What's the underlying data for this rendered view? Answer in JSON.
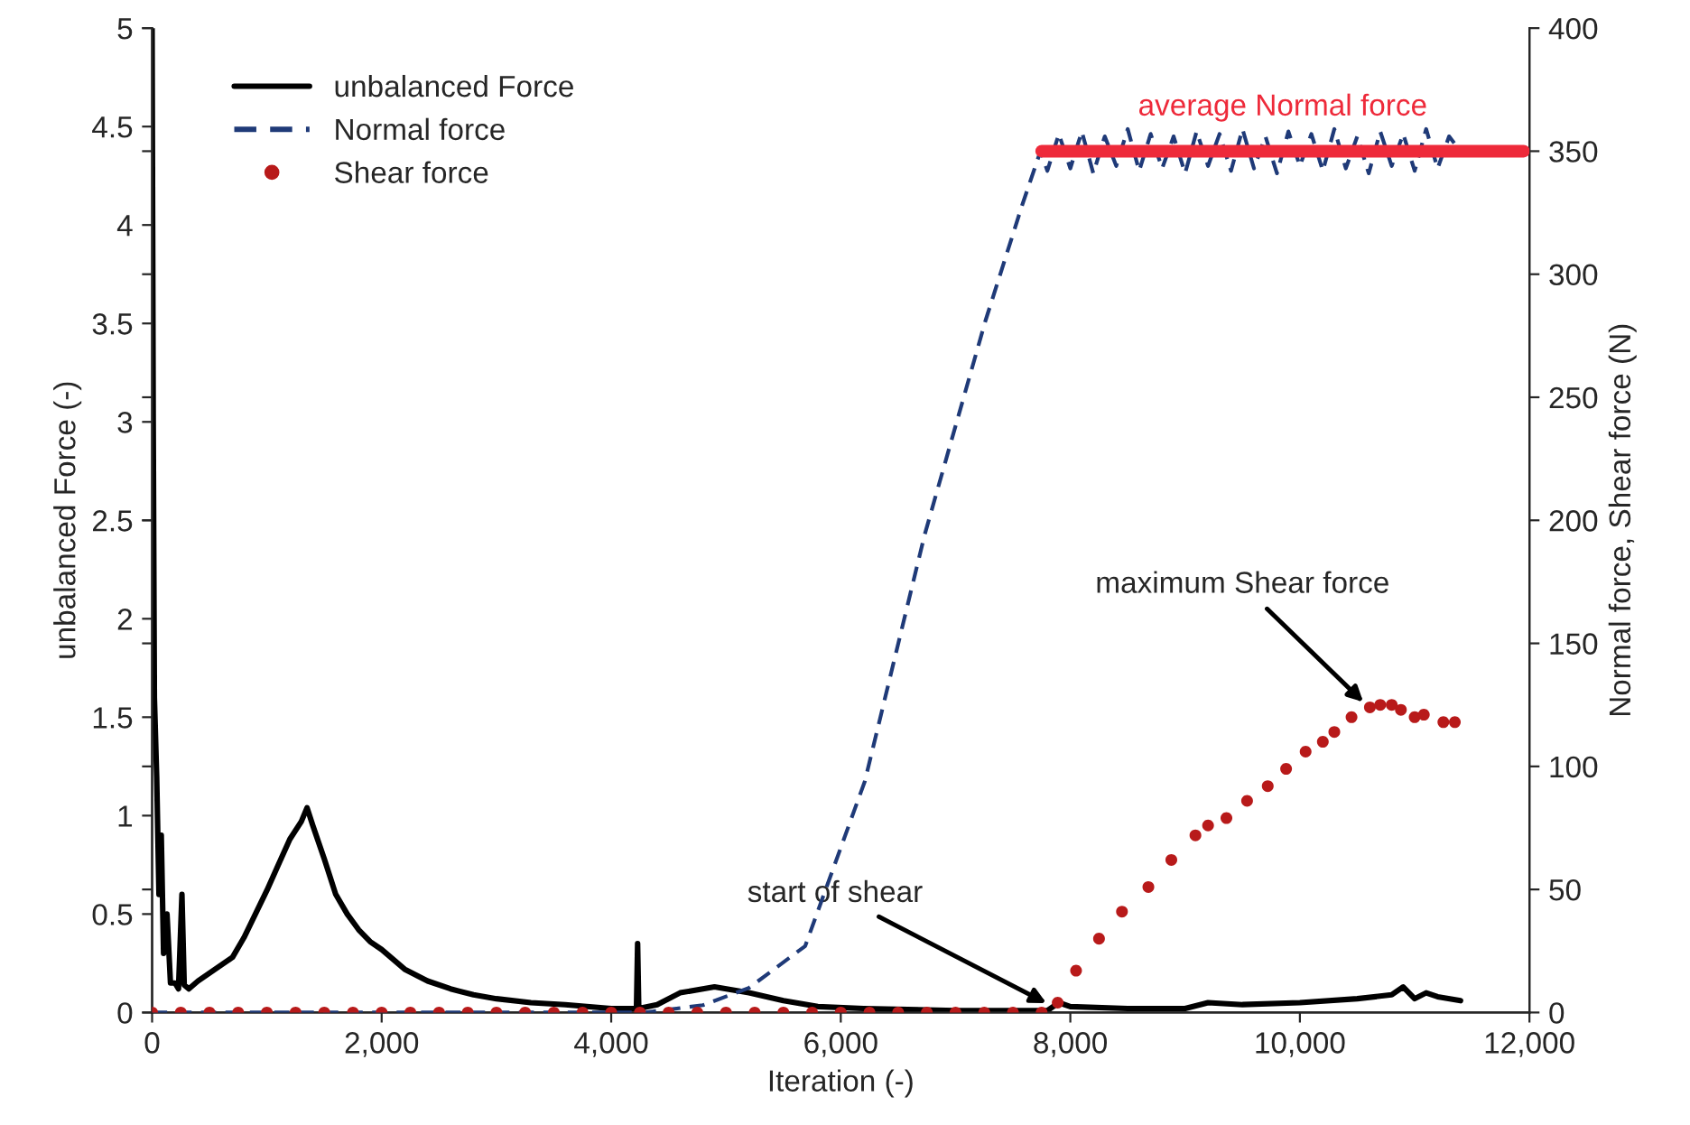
{
  "chart_data": {
    "type": "line",
    "xlabel": "Iteration (-)",
    "ylabel": "unbalanced Force (-)",
    "y2label": "Normal force, Shear force (N)",
    "xlim": [
      0,
      12000
    ],
    "xticks": [
      0,
      {
        "value": 2000,
        "label": "2,000"
      },
      {
        "value": 4000,
        "label": "4,000"
      },
      {
        "value": 6000,
        "label": "6,000"
      },
      {
        "value": 8000,
        "label": "8,000"
      },
      {
        "value": 10000,
        "label": "10,000"
      },
      {
        "value": 12000,
        "label": "12,000"
      }
    ],
    "ylim": [
      0,
      5
    ],
    "yticks": [
      0,
      0.5,
      1,
      1.5,
      2,
      2.5,
      3,
      3.5,
      4,
      4.5,
      5
    ],
    "y2lim": [
      0,
      400
    ],
    "y2ticks": [
      0,
      50,
      100,
      150,
      200,
      250,
      300,
      350,
      400
    ],
    "grid": false,
    "legend": "top left",
    "series": [
      {
        "name": "unbalanced Force",
        "color": "#000000",
        "line_style": "solid",
        "x": [
          0,
          10,
          20,
          40,
          60,
          80,
          100,
          130,
          160,
          200,
          230,
          260,
          280,
          320,
          400,
          500,
          600,
          700,
          800,
          900,
          1000,
          1100,
          1200,
          1300,
          1350,
          1400,
          1500,
          1600,
          1700,
          1800,
          1900,
          2000,
          2200,
          2400,
          2600,
          2800,
          3000,
          3300,
          3600,
          4000,
          4220,
          4230,
          4240,
          4400,
          4600,
          4900,
          5200,
          5500,
          5800,
          6200,
          7000,
          7800,
          7900,
          8000,
          8500,
          9000,
          9200,
          9500,
          10000,
          10500,
          10800,
          10900,
          11000,
          11100,
          11200,
          11400
        ],
        "values": [
          5.0,
          3.0,
          1.6,
          1.2,
          0.6,
          0.9,
          0.3,
          0.5,
          0.15,
          0.15,
          0.12,
          0.6,
          0.14,
          0.12,
          0.16,
          0.2,
          0.24,
          0.28,
          0.38,
          0.5,
          0.62,
          0.75,
          0.88,
          0.97,
          1.04,
          0.95,
          0.78,
          0.6,
          0.5,
          0.42,
          0.36,
          0.32,
          0.22,
          0.16,
          0.12,
          0.09,
          0.07,
          0.05,
          0.04,
          0.02,
          0.02,
          0.35,
          0.02,
          0.04,
          0.1,
          0.13,
          0.1,
          0.06,
          0.03,
          0.02,
          0.01,
          0.01,
          0.05,
          0.03,
          0.02,
          0.02,
          0.05,
          0.04,
          0.05,
          0.07,
          0.09,
          0.13,
          0.07,
          0.1,
          0.08,
          0.06
        ]
      },
      {
        "name": "Normal force",
        "type": "line",
        "axis": "y2",
        "color": "#1f3a78",
        "line_style": "dashed",
        "x": [
          0,
          1000,
          2000,
          3000,
          4000,
          4300,
          4800,
          5200,
          5690,
          6210,
          6730,
          7260,
          7580,
          7740,
          7800,
          7900,
          8000,
          8100,
          8200,
          8300,
          8400,
          8500,
          8600,
          8700,
          8800,
          8900,
          9000,
          9100,
          9200,
          9300,
          9400,
          9500,
          9600,
          9700,
          9800,
          9900,
          10000,
          10100,
          10200,
          10300,
          10400,
          10500,
          10600,
          10700,
          10800,
          10900,
          11000,
          11100,
          11200,
          11300,
          11400
        ],
        "values": [
          0,
          0,
          0,
          0,
          0,
          0,
          3,
          10,
          27,
          94,
          194,
          281,
          328,
          350,
          342,
          357,
          343,
          358,
          341,
          356,
          344,
          359,
          342,
          357,
          343,
          356,
          341,
          358,
          344,
          357,
          342,
          359,
          343,
          356,
          341,
          358,
          344,
          357,
          342,
          359,
          343,
          356,
          341,
          358,
          344,
          357,
          342,
          359,
          343,
          356,
          350
        ]
      },
      {
        "name": "Shear force",
        "type": "scatter",
        "axis": "y2",
        "color": "#b81a1a",
        "marker": "circle",
        "x": [
          0,
          250,
          500,
          750,
          1000,
          1250,
          1500,
          1750,
          2000,
          2250,
          2500,
          2750,
          3000,
          3250,
          3500,
          3750,
          4000,
          4250,
          4500,
          4750,
          5000,
          5250,
          5500,
          5750,
          6000,
          6250,
          6500,
          6750,
          7000,
          7250,
          7500,
          7750,
          7890,
          8050,
          8250,
          8450,
          8680,
          8880,
          9090,
          9200,
          9360,
          9540,
          9720,
          9880,
          10050,
          10200,
          10300,
          10450,
          10610,
          10700,
          10800,
          10880,
          11000,
          11080,
          11250,
          11350
        ],
        "values": [
          0,
          0,
          0,
          0,
          0,
          0,
          0,
          0,
          0,
          0,
          0,
          0,
          0,
          0,
          0,
          0,
          0,
          0,
          0,
          0,
          0,
          0,
          0,
          0,
          0,
          0,
          0,
          0,
          0,
          0,
          0,
          0,
          4,
          17,
          30,
          41,
          51,
          62,
          72,
          76,
          79,
          86,
          92,
          99,
          106,
          110,
          114,
          120,
          124,
          125,
          125,
          123,
          120,
          121,
          118,
          118
        ]
      },
      {
        "name": "average Normal force",
        "type": "line",
        "axis": "y2",
        "color": "#ee2a3a",
        "line_style": "solid",
        "x": [
          7750,
          11950
        ],
        "values": [
          350,
          350
        ]
      }
    ],
    "annotations": [
      {
        "text": "maximum Shear force",
        "x": 10600,
        "y": 1.55
      },
      {
        "text": "start of shear",
        "x": 7850,
        "y": 0.03
      }
    ]
  }
}
